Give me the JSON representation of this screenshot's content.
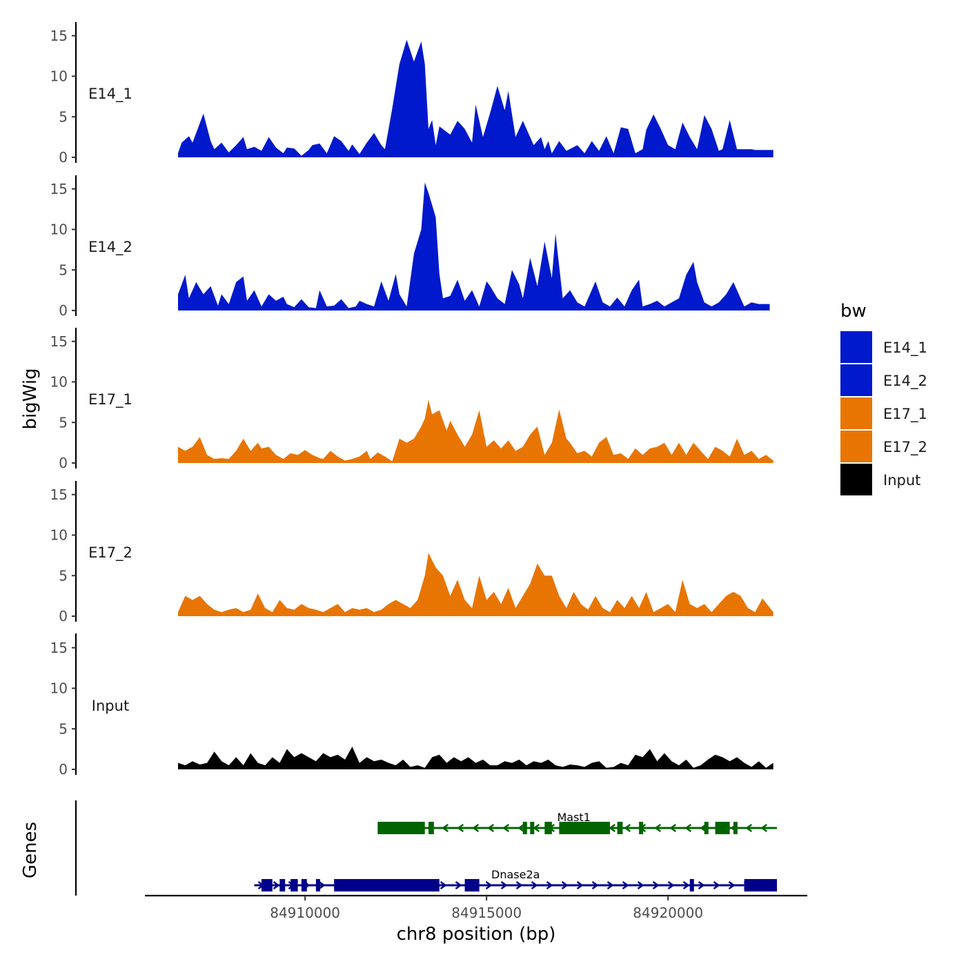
{
  "chart_data": {
    "type": "area",
    "title": "",
    "ylabel": "bigWig",
    "genes_label": "Genes",
    "xlabel": "chr8 position (bp)",
    "x_range": [
      84906500,
      84923000
    ],
    "x_ticks": [
      84910000,
      84915000,
      84920000
    ],
    "x_tick_labels": [
      "84910000",
      "84915000",
      "84920000"
    ],
    "y_range": [
      0,
      16
    ],
    "y_ticks": [
      0,
      5,
      10,
      15
    ],
    "y_tick_labels": [
      "0",
      "5",
      "10",
      "15"
    ],
    "legend": {
      "title": "bw",
      "placement": "right",
      "entries": [
        {
          "label": "E14_1",
          "color": "#0019cc"
        },
        {
          "label": "E14_2",
          "color": "#0019cc"
        },
        {
          "label": "E17_1",
          "color": "#e87502"
        },
        {
          "label": "E17_2",
          "color": "#e87502"
        },
        {
          "label": "Input",
          "color": "#000000"
        }
      ]
    },
    "series": [
      {
        "name": "E14_1",
        "color": "#0019cc",
        "x": [
          84906500,
          84906600,
          84906800,
          84906900,
          84907000,
          84907200,
          84907400,
          84907500,
          84907700,
          84907900,
          84908100,
          84908300,
          84908400,
          84908600,
          84908800,
          84909000,
          84909200,
          84909400,
          84909500,
          84909700,
          84909900,
          84910100,
          84910200,
          84910400,
          84910600,
          84910800,
          84911000,
          84911200,
          84911300,
          84911500,
          84911700,
          84911900,
          84912100,
          84912200,
          84912400,
          84912600,
          84912800,
          84913000,
          84913200,
          84913300,
          84913400,
          84913500,
          84913600,
          84913700,
          84914000,
          84914200,
          84914400,
          84914600,
          84914700,
          84914900,
          84915100,
          84915300,
          84915500,
          84915600,
          84915800,
          84916000,
          84916300,
          84916500,
          84916600,
          84916700,
          84916800,
          84917000,
          84917200,
          84917500,
          84917700,
          84917900,
          84918100,
          84918300,
          84918500,
          84918700,
          84918900,
          84919100,
          84919300,
          84919400,
          84919600,
          84919800,
          84920000,
          84920200,
          84920400,
          84920600,
          84920800,
          84921000,
          84921200,
          84921400,
          84921500,
          84921700,
          84921900,
          84922100,
          84922300,
          84922400,
          84922600,
          84922900
        ],
        "values": [
          0.5,
          1.8,
          2.6,
          1.8,
          3.0,
          5.4,
          2.0,
          1.0,
          1.8,
          0.6,
          1.5,
          2.5,
          1.0,
          1.3,
          0.8,
          2.5,
          1.2,
          0.5,
          1.2,
          1.1,
          0.2,
          0.9,
          1.5,
          1.7,
          0.5,
          2.6,
          2.0,
          0.8,
          1.6,
          0.4,
          1.8,
          3.0,
          1.5,
          1.0,
          6.0,
          11.5,
          14.5,
          11.8,
          14.3,
          11.5,
          3.5,
          4.6,
          1.5,
          3.8,
          2.8,
          4.5,
          3.5,
          1.8,
          6.5,
          2.5,
          5.5,
          8.8,
          5.8,
          8.2,
          2.5,
          4.5,
          1.5,
          2.5,
          1.0,
          2.0,
          0.5,
          2.0,
          0.8,
          1.5,
          0.5,
          2.0,
          0.8,
          2.6,
          0.5,
          3.7,
          3.5,
          0.5,
          1.0,
          3.4,
          5.3,
          3.5,
          1.5,
          1.0,
          4.3,
          2.5,
          1.0,
          5.2,
          3.5,
          0.8,
          1.0,
          4.6,
          1.0,
          1.0,
          1.0,
          0.9,
          0.9,
          0.9
        ]
      },
      {
        "name": "E14_2",
        "color": "#0019cc",
        "x": [
          84906500,
          84906700,
          84906800,
          84907000,
          84907200,
          84907400,
          84907600,
          84907700,
          84907900,
          84908100,
          84908300,
          84908400,
          84908600,
          84908800,
          84909000,
          84909200,
          84909400,
          84909500,
          84909700,
          84909900,
          84910100,
          84910300,
          84910400,
          84910600,
          84910800,
          84911000,
          84911200,
          84911400,
          84911500,
          84911700,
          84911900,
          84912100,
          84912300,
          84912500,
          84912600,
          84912800,
          84913000,
          84913200,
          84913300,
          84913400,
          84913600,
          84913700,
          84913800,
          84914000,
          84914200,
          84914400,
          84914600,
          84914800,
          84915000,
          84915100,
          84915300,
          84915500,
          84915700,
          84915900,
          84916000,
          84916200,
          84916400,
          84916600,
          84916800,
          84916900,
          84917100,
          84917300,
          84917500,
          84917700,
          84917800,
          84918000,
          84918200,
          84918400,
          84918600,
          84918800,
          84919000,
          84919200,
          84919300,
          84919500,
          84919700,
          84919900,
          84920100,
          84920300,
          84920500,
          84920700,
          84920800,
          84921000,
          84921200,
          84921400,
          84921600,
          84921800,
          84922000,
          84922100,
          84922300,
          84922500,
          84922800
        ],
        "values": [
          2.0,
          4.4,
          1.5,
          3.5,
          2.0,
          3.0,
          0.6,
          2.0,
          0.8,
          3.5,
          4.2,
          1.2,
          2.5,
          0.5,
          2.0,
          1.2,
          1.7,
          0.8,
          0.4,
          1.4,
          0.4,
          0.3,
          2.5,
          0.5,
          0.6,
          1.4,
          0.3,
          0.5,
          1.2,
          0.8,
          0.5,
          3.6,
          1.2,
          4.5,
          2.0,
          0.5,
          7.0,
          10.0,
          15.8,
          14.5,
          11.5,
          4.5,
          1.5,
          1.8,
          3.8,
          1.2,
          2.5,
          0.5,
          3.6,
          3.0,
          1.5,
          0.8,
          5.0,
          3.2,
          1.5,
          6.5,
          3.0,
          8.5,
          4.0,
          9.5,
          1.5,
          2.5,
          1.0,
          0.5,
          1.5,
          3.6,
          1.0,
          0.5,
          1.6,
          0.5,
          2.5,
          3.8,
          0.5,
          0.8,
          1.2,
          0.5,
          1.0,
          1.5,
          4.4,
          6.0,
          3.5,
          1.0,
          0.5,
          1.0,
          2.0,
          3.5,
          1.5,
          0.5,
          1.0,
          0.8,
          0.8
        ]
      },
      {
        "name": "E17_1",
        "color": "#e87502",
        "x": [
          84906500,
          84906700,
          84906900,
          84907100,
          84907300,
          84907500,
          84907700,
          84907900,
          84908100,
          84908300,
          84908500,
          84908700,
          84908800,
          84909000,
          84909200,
          84909400,
          84909600,
          84909800,
          84910000,
          84910200,
          84910400,
          84910500,
          84910700,
          84910900,
          84911100,
          84911300,
          84911500,
          84911700,
          84911800,
          84912000,
          84912200,
          84912400,
          84912600,
          84912800,
          84913000,
          84913200,
          84913300,
          84913400,
          84913500,
          84913700,
          84913900,
          84914000,
          84914200,
          84914400,
          84914600,
          84914800,
          84915000,
          84915200,
          84915400,
          84915600,
          84915800,
          84916000,
          84916200,
          84916400,
          84916600,
          84916800,
          84917000,
          84917200,
          84917300,
          84917500,
          84917700,
          84917900,
          84918100,
          84918300,
          84918500,
          84918700,
          84918900,
          84919100,
          84919300,
          84919500,
          84919700,
          84919900,
          84920100,
          84920300,
          84920500,
          84920700,
          84920900,
          84921100,
          84921300,
          84921500,
          84921700,
          84921900,
          84922100,
          84922300,
          84922500,
          84922700,
          84922900
        ],
        "values": [
          2.0,
          1.5,
          2.0,
          3.2,
          1.0,
          0.5,
          0.6,
          0.5,
          1.5,
          3.0,
          1.5,
          2.5,
          1.8,
          2.0,
          1.0,
          0.5,
          1.2,
          1.0,
          1.6,
          1.0,
          0.6,
          0.5,
          1.5,
          0.8,
          0.3,
          0.5,
          0.8,
          1.5,
          0.5,
          1.3,
          0.8,
          0.2,
          3.0,
          2.5,
          3.0,
          4.5,
          5.5,
          7.8,
          6.0,
          6.5,
          4.0,
          5.2,
          3.5,
          2.0,
          3.5,
          6.5,
          2.0,
          2.8,
          1.8,
          2.8,
          1.5,
          2.0,
          3.5,
          4.5,
          1.0,
          2.5,
          6.6,
          3.0,
          2.5,
          1.2,
          1.5,
          0.8,
          2.5,
          3.2,
          1.0,
          1.2,
          0.5,
          1.8,
          1.0,
          1.8,
          2.0,
          2.5,
          1.0,
          2.5,
          1.0,
          2.5,
          1.5,
          0.5,
          2.0,
          1.5,
          0.8,
          3.0,
          1.0,
          1.5,
          0.5,
          1.0,
          0.3
        ]
      },
      {
        "name": "E17_2",
        "color": "#e87502",
        "x": [
          84906500,
          84906700,
          84906900,
          84907100,
          84907300,
          84907500,
          84907700,
          84907900,
          84908100,
          84908300,
          84908500,
          84908700,
          84908900,
          84909100,
          84909300,
          84909500,
          84909700,
          84909900,
          84910100,
          84910300,
          84910500,
          84910700,
          84910900,
          84911100,
          84911300,
          84911500,
          84911700,
          84911900,
          84912100,
          84912300,
          84912500,
          84912700,
          84912900,
          84913100,
          84913300,
          84913400,
          84913600,
          84913800,
          84914000,
          84914200,
          84914400,
          84914600,
          84914800,
          84915000,
          84915200,
          84915400,
          84915600,
          84915800,
          84916000,
          84916200,
          84916400,
          84916600,
          84916800,
          84917000,
          84917200,
          84917400,
          84917600,
          84917800,
          84918000,
          84918200,
          84918400,
          84918600,
          84918800,
          84919000,
          84919200,
          84919400,
          84919600,
          84919800,
          84920000,
          84920200,
          84920400,
          84920600,
          84920800,
          84921000,
          84921200,
          84921400,
          84921600,
          84921800,
          84922000,
          84922200,
          84922400,
          84922600,
          84922900
        ],
        "values": [
          0.5,
          2.5,
          2.0,
          2.5,
          1.5,
          0.8,
          0.5,
          0.8,
          1.0,
          0.5,
          0.8,
          2.8,
          1.0,
          0.5,
          2.0,
          1.0,
          0.8,
          1.5,
          1.0,
          0.8,
          0.5,
          1.0,
          1.5,
          0.5,
          1.0,
          0.8,
          1.0,
          0.5,
          0.8,
          1.5,
          2.0,
          1.5,
          1.0,
          2.0,
          5.0,
          7.8,
          6.0,
          5.0,
          2.5,
          4.5,
          2.0,
          1.0,
          5.0,
          2.0,
          3.0,
          1.5,
          3.5,
          1.0,
          2.5,
          4.0,
          6.5,
          5.0,
          5.0,
          2.5,
          1.0,
          3.0,
          1.5,
          0.8,
          2.5,
          1.0,
          0.5,
          2.0,
          1.0,
          2.5,
          1.0,
          3.0,
          0.5,
          1.0,
          1.5,
          0.5,
          4.5,
          1.5,
          1.0,
          1.5,
          0.5,
          1.5,
          2.5,
          3.0,
          2.5,
          1.0,
          0.5,
          2.2,
          0.5
        ]
      },
      {
        "name": "Input",
        "color": "#000000",
        "x": [
          84906500,
          84906700,
          84906900,
          84907100,
          84907300,
          84907500,
          84907700,
          84907900,
          84908100,
          84908300,
          84908500,
          84908700,
          84908900,
          84909100,
          84909300,
          84909500,
          84909700,
          84909900,
          84910100,
          84910300,
          84910500,
          84910700,
          84910900,
          84911100,
          84911300,
          84911500,
          84911700,
          84911900,
          84912100,
          84912300,
          84912500,
          84912700,
          84912900,
          84913100,
          84913300,
          84913500,
          84913700,
          84913900,
          84914100,
          84914300,
          84914500,
          84914700,
          84914900,
          84915100,
          84915300,
          84915500,
          84915700,
          84915900,
          84916100,
          84916300,
          84916500,
          84916700,
          84916900,
          84917100,
          84917300,
          84917500,
          84917700,
          84917900,
          84918100,
          84918300,
          84918500,
          84918700,
          84918900,
          84919100,
          84919300,
          84919500,
          84919700,
          84919900,
          84920100,
          84920300,
          84920500,
          84920700,
          84920900,
          84921100,
          84921300,
          84921500,
          84921700,
          84921900,
          84922100,
          84922300,
          84922500,
          84922700,
          84922900
        ],
        "values": [
          0.8,
          0.5,
          1.0,
          0.6,
          0.8,
          2.2,
          1.0,
          0.5,
          1.5,
          0.5,
          2.0,
          0.8,
          0.5,
          1.5,
          0.8,
          2.5,
          1.5,
          2.0,
          1.5,
          1.0,
          2.0,
          1.5,
          1.8,
          1.2,
          2.8,
          0.8,
          1.5,
          1.0,
          1.2,
          0.8,
          0.5,
          1.2,
          0.3,
          0.5,
          0.2,
          1.5,
          1.8,
          0.8,
          1.5,
          1.0,
          1.5,
          0.8,
          1.2,
          0.5,
          0.5,
          1.0,
          0.8,
          1.2,
          0.5,
          1.0,
          0.8,
          1.2,
          0.5,
          0.3,
          0.6,
          0.5,
          0.3,
          0.8,
          1.0,
          0.2,
          0.3,
          0.8,
          0.5,
          1.8,
          1.5,
          2.5,
          1.0,
          2.0,
          1.0,
          0.5,
          1.2,
          0.2,
          0.5,
          1.2,
          1.8,
          1.5,
          1.0,
          1.5,
          0.8,
          0.3,
          1.0,
          0.2,
          0.8
        ]
      }
    ],
    "genes": [
      {
        "name": "Mast1",
        "color": "#006400",
        "strand": "-",
        "start": 84912000,
        "end": 84923000,
        "exons": [
          [
            84912000,
            84913300
          ],
          [
            84913400,
            84913550
          ],
          [
            84916000,
            84916100
          ],
          [
            84916200,
            84916300
          ],
          [
            84916600,
            84916800
          ],
          [
            84917000,
            84918400
          ],
          [
            84918600,
            84918750
          ],
          [
            84919200,
            84919300
          ],
          [
            84921000,
            84921100
          ],
          [
            84921300,
            84921700
          ],
          [
            84921800,
            84921900
          ]
        ]
      },
      {
        "name": "Dnase2a",
        "color": "#00008b",
        "strand": "+",
        "start": 84908600,
        "end": 84923000,
        "exons": [
          [
            84908800,
            84909100
          ],
          [
            84909300,
            84909450
          ],
          [
            84909600,
            84909800
          ],
          [
            84909900,
            84910050
          ],
          [
            84910300,
            84910400
          ],
          [
            84910800,
            84913700
          ],
          [
            84914400,
            84914800
          ],
          [
            84920600,
            84920700
          ],
          [
            84922100,
            84923000
          ]
        ]
      }
    ]
  }
}
